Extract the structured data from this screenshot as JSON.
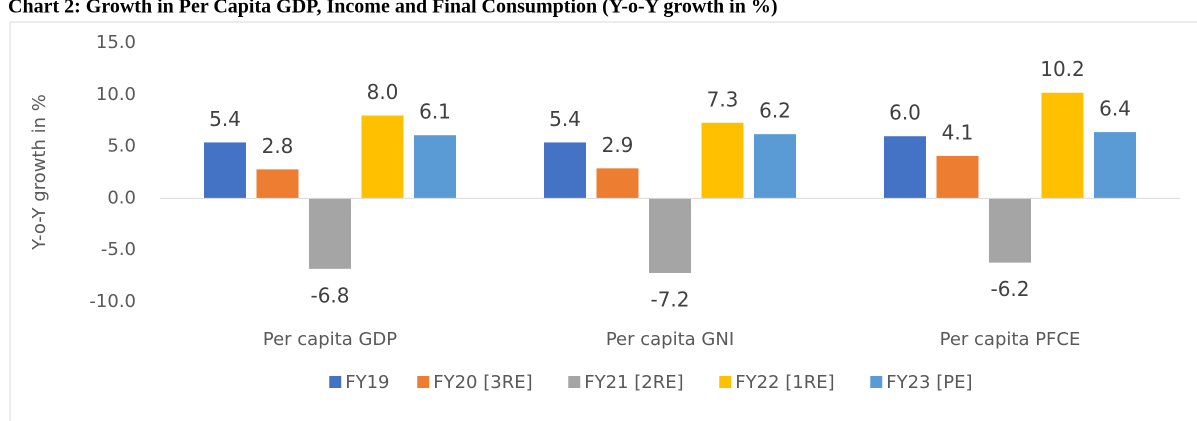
{
  "chart_data": {
    "type": "bar",
    "title": "Chart 2: Growth in Per Capita GDP, Income and Final Consumption (Y-o-Y growth in %)",
    "ylabel": "Y-o-Y growth in %",
    "categories": [
      "Per capita GDP",
      "Per capita GNI",
      "Per capita PFCE"
    ],
    "series": [
      {
        "name": "FY19",
        "color": "#4472c4",
        "values": [
          5.4,
          5.4,
          6.0
        ],
        "value_labels": [
          "5.4",
          "5.4",
          "6.0"
        ]
      },
      {
        "name": "FY20 [3RE]",
        "color": "#ed7d31",
        "values": [
          2.8,
          2.9,
          4.1
        ],
        "value_labels": [
          "2.8",
          "2.9",
          "4.1"
        ]
      },
      {
        "name": "FY21 [2RE]",
        "color": "#a5a5a5",
        "values": [
          -6.8,
          -7.2,
          -6.2
        ],
        "value_labels": [
          "-6.8",
          "-7.2",
          "-6.2"
        ]
      },
      {
        "name": "FY22 [1RE]",
        "color": "#ffc000",
        "values": [
          8.0,
          7.3,
          10.2
        ],
        "value_labels": [
          "8.0",
          "7.3",
          "10.2"
        ]
      },
      {
        "name": "FY23 [PE]",
        "color": "#5b9bd5",
        "values": [
          6.1,
          6.2,
          6.4
        ],
        "value_labels": [
          "6.1",
          "6.2",
          "6.4"
        ]
      }
    ],
    "ylim": [
      -10,
      15
    ],
    "yticks": [
      {
        "value": -10,
        "label": "-10.0"
      },
      {
        "value": -5,
        "label": "-5.0"
      },
      {
        "value": 0,
        "label": "0.0"
      },
      {
        "value": 5,
        "label": "5.0"
      },
      {
        "value": 10,
        "label": "10.0"
      },
      {
        "value": 15,
        "label": "15.0"
      }
    ],
    "grid": false,
    "legend": "bottom"
  }
}
